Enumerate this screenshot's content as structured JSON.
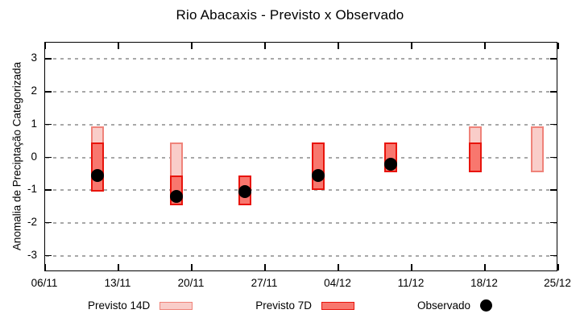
{
  "chart_data": {
    "type": "bar",
    "subtype": "range-bars-with-scatter-overlay",
    "title": "Rio Abacaxis - Previsto x Observado",
    "ylabel": "Anomalia de Preciptação Categorizada",
    "xlabel": "",
    "ylim": [
      -3.5,
      3.5
    ],
    "y_ticks": [
      3,
      2,
      1,
      0,
      -1,
      -2,
      -3
    ],
    "x_ticks": [
      {
        "label": "06/11",
        "day": 0
      },
      {
        "label": "13/11",
        "day": 7
      },
      {
        "label": "20/11",
        "day": 14
      },
      {
        "label": "27/11",
        "day": 21
      },
      {
        "label": "04/12",
        "day": 28
      },
      {
        "label": "11/12",
        "day": 35
      },
      {
        "label": "18/12",
        "day": 42
      },
      {
        "label": "25/12",
        "day": 49
      }
    ],
    "x_domain_days": 49,
    "grid": "horizontal-dashed",
    "legend_position": "bottom",
    "series": [
      {
        "name": "Previsto 14D",
        "kind": "range",
        "fill": "#f9cdc9",
        "border": "#ef837a",
        "points": [
          {
            "day": 5,
            "low": -1.05,
            "high": 0.95
          },
          {
            "day": 12.5,
            "low": -1.45,
            "high": 0.45
          },
          {
            "day": 41.1,
            "low": -0.45,
            "high": 0.95
          },
          {
            "day": 47,
            "low": -0.45,
            "high": 0.95
          }
        ]
      },
      {
        "name": "Previsto 7D",
        "kind": "range",
        "fill": "#f8776e",
        "border": "#e8140c",
        "points": [
          {
            "day": 5,
            "low": -1.05,
            "high": 0.45
          },
          {
            "day": 12.5,
            "low": -1.45,
            "high": -0.55
          },
          {
            "day": 19.1,
            "low": -1.45,
            "high": -0.55
          },
          {
            "day": 26.1,
            "low": -1.0,
            "high": 0.45
          },
          {
            "day": 33,
            "low": -0.45,
            "high": 0.45
          },
          {
            "day": 41.1,
            "low": -0.45,
            "high": 0.45
          }
        ]
      },
      {
        "name": "Observado",
        "kind": "scatter",
        "color": "#000000",
        "points": [
          {
            "day": 5,
            "value": -0.55
          },
          {
            "day": 12.5,
            "value": -1.2
          },
          {
            "day": 19.1,
            "value": -1.05
          },
          {
            "day": 26.1,
            "value": -0.55
          },
          {
            "day": 33,
            "value": -0.2
          }
        ]
      }
    ],
    "colors": {
      "grid": "#a8a8a8",
      "frame": "#000000"
    }
  },
  "legend": {
    "items": [
      {
        "label": "Previsto 14D"
      },
      {
        "label": "Previsto 7D"
      },
      {
        "label": "Observado"
      }
    ]
  }
}
